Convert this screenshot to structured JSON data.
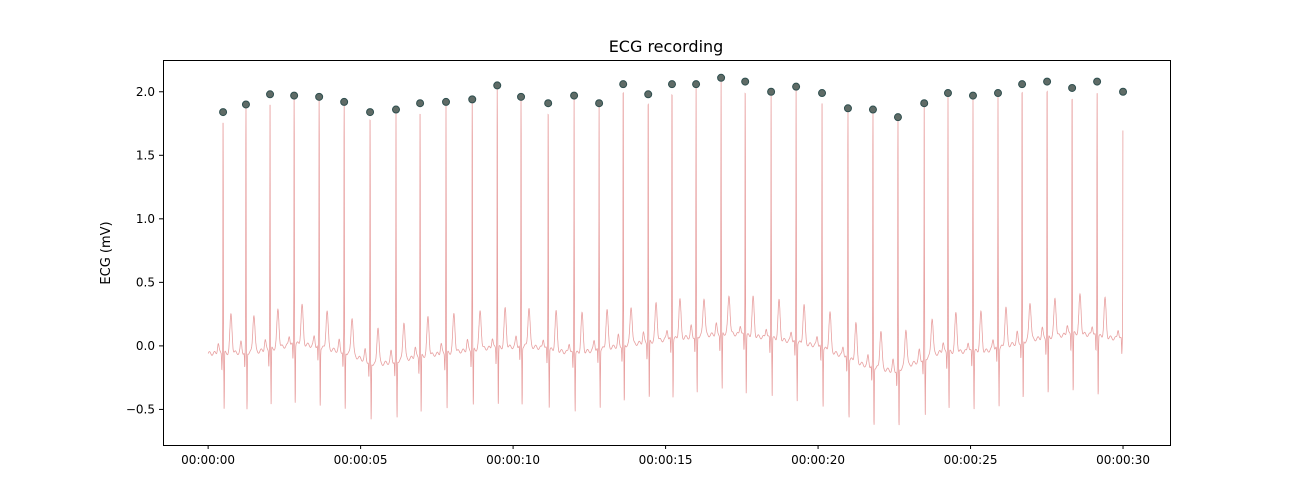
{
  "chart_data": {
    "type": "line",
    "title": "ECG recording",
    "xlabel": "",
    "ylabel": "ECG (mV)",
    "xlim": [
      -1.48,
      31.54
    ],
    "ylim": [
      -0.78,
      2.25
    ],
    "grid": false,
    "x_unit": "seconds",
    "x_ticks": [
      0,
      5,
      10,
      15,
      20,
      25,
      30
    ],
    "x_tick_labels": [
      "00:00:00",
      "00:00:05",
      "00:00:10",
      "00:00:15",
      "00:00:20",
      "00:00:25",
      "00:00:30"
    ],
    "y_ticks": [
      -0.5,
      0.0,
      0.5,
      1.0,
      1.5,
      2.0
    ],
    "y_tick_labels": [
      "−0.5",
      "0.0",
      "0.5",
      "1.0",
      "1.5",
      "2.0"
    ],
    "line_color": "#e08080",
    "marker_color": "#5f6b66",
    "marker_edge_color": "#2f4f4f",
    "r_peaks": {
      "t": [
        0.49,
        1.24,
        2.03,
        2.82,
        3.64,
        4.46,
        5.31,
        6.16,
        6.95,
        7.8,
        8.66,
        9.48,
        10.26,
        11.15,
        12.0,
        12.82,
        13.61,
        14.43,
        15.21,
        16.0,
        16.82,
        17.61,
        18.46,
        19.28,
        20.13,
        20.98,
        21.8,
        22.62,
        23.48,
        24.26,
        25.08,
        25.9,
        26.69,
        27.51,
        28.33,
        29.15,
        30.0
      ],
      "value": [
        1.84,
        1.9,
        1.98,
        1.97,
        1.96,
        1.92,
        1.84,
        1.86,
        1.91,
        1.92,
        1.94,
        2.05,
        1.96,
        1.91,
        1.97,
        1.91,
        2.06,
        1.98,
        2.06,
        2.06,
        2.11,
        2.08,
        2.0,
        2.04,
        1.99,
        1.87,
        1.86,
        1.8,
        1.91,
        1.99,
        1.97,
        1.99,
        2.06,
        2.08,
        2.03,
        2.08,
        2.0
      ]
    },
    "baseline": {
      "t": [
        0,
        1.5,
        3,
        4.5,
        5.5,
        7,
        9,
        10.5,
        12,
        13.5,
        15,
        17,
        18.5,
        20,
        21.5,
        22.5,
        24,
        25.5,
        27,
        28.5,
        30
      ],
      "value": [
        -0.06,
        -0.05,
        0.02,
        -0.05,
        -0.15,
        -0.08,
        -0.02,
        0.0,
        -0.06,
        0.0,
        0.05,
        0.1,
        0.06,
        0.0,
        -0.15,
        -0.2,
        -0.05,
        -0.04,
        0.05,
        0.1,
        0.05
      ]
    }
  }
}
